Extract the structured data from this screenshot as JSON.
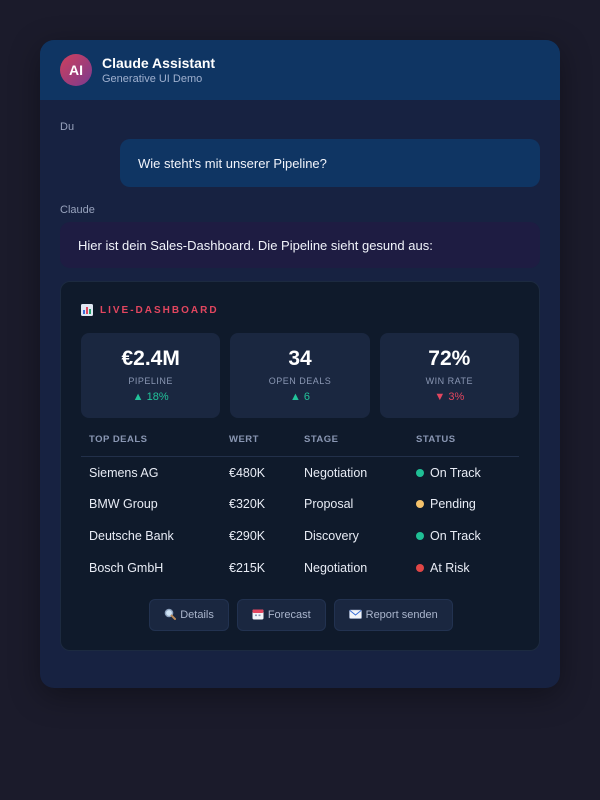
{
  "app": {
    "avatar_text": "AI",
    "title": "Claude Assistant",
    "subtitle": "Generative UI Demo"
  },
  "chat": {
    "user_sender": "Du",
    "user_message": "Wie steht's mit unserer Pipeline?",
    "bot_sender": "Claude",
    "bot_message": "Hier ist dein Sales-Dashboard. Die Pipeline sieht gesund aus:"
  },
  "dashboard": {
    "title": "LIVE-DASHBOARD",
    "title_icon": "bar-chart-icon",
    "kpis": [
      {
        "value": "€2.4M",
        "label": "PIPELINE",
        "trend": "▲ 18%",
        "direction": "up"
      },
      {
        "value": "34",
        "label": "OPEN DEALS",
        "trend": "▲ 6",
        "direction": "up"
      },
      {
        "value": "72%",
        "label": "WIN RATE",
        "trend": "▼ 3%",
        "direction": "down"
      }
    ],
    "table": {
      "headers": [
        "TOP DEALS",
        "WERT",
        "STAGE",
        "STATUS"
      ],
      "rows": [
        {
          "deal": "Siemens AG",
          "value": "€480K",
          "stage": "Negotiation",
          "status": "On Track",
          "status_color": "#1fbf95"
        },
        {
          "deal": "BMW Group",
          "value": "€320K",
          "stage": "Proposal",
          "status": "Pending",
          "status_color": "#f5c26b"
        },
        {
          "deal": "Deutsche Bank",
          "value": "€290K",
          "stage": "Discovery",
          "status": "On Track",
          "status_color": "#1fbf95"
        },
        {
          "deal": "Bosch GmbH",
          "value": "€215K",
          "stage": "Negotiation",
          "status": "At Risk",
          "status_color": "#e04646"
        }
      ]
    },
    "actions": [
      {
        "icon": "magnifier-icon",
        "label": "Details"
      },
      {
        "icon": "calendar-icon",
        "label": "Forecast"
      },
      {
        "icon": "envelope-icon",
        "label": "Report senden"
      }
    ]
  },
  "colors": {
    "accent": "#e2465f",
    "up": "#22c39a",
    "down": "#e2465f",
    "header_bg": "#0f3563"
  }
}
